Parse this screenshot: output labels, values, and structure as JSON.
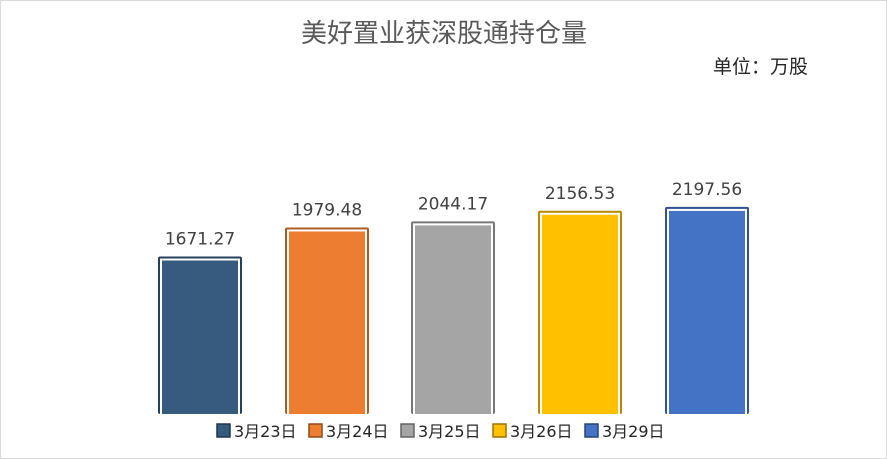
{
  "chart_data": {
    "type": "bar",
    "title": "美好置业获深股通持仓量",
    "unit_label": "单位：万股",
    "categories": [
      "3月23日",
      "3月24日",
      "3月25日",
      "3月26日",
      "3月29日"
    ],
    "values": [
      1671.27,
      1979.48,
      2044.17,
      2156.53,
      2197.56
    ],
    "value_labels": [
      "1671.27",
      "1979.48",
      "2044.17",
      "2156.53",
      "2197.56"
    ],
    "colors": [
      "#375a7f",
      "#ed7d31",
      "#a5a5a5",
      "#ffc000",
      "#4472c4"
    ],
    "ylim": [
      0,
      3800
    ],
    "grid": false,
    "legend_position": "bottom"
  }
}
